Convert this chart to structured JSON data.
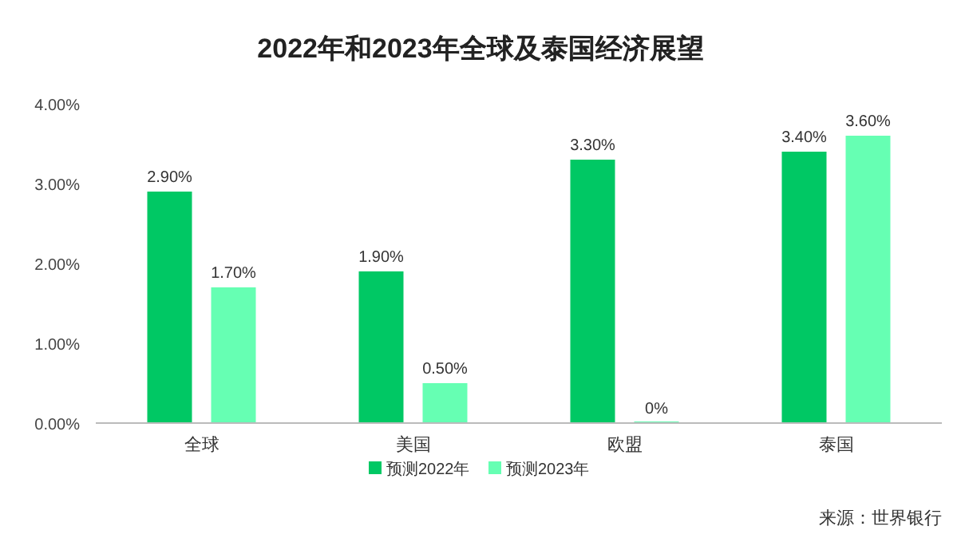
{
  "chart_data": {
    "type": "bar",
    "title": "2022年和2023年全球及泰国经济展望",
    "categories": [
      "全球",
      "美国",
      "欧盟",
      "泰国"
    ],
    "series": [
      {
        "name": "预测2022年",
        "color": "#00c864",
        "values": [
          2.9,
          1.9,
          3.3,
          3.4
        ],
        "value_labels": [
          "2.90%",
          "1.90%",
          "3.30%",
          "3.40%"
        ]
      },
      {
        "name": "预测2023年",
        "color": "#66ffb3",
        "values": [
          1.7,
          0.5,
          0,
          3.6
        ],
        "value_labels": [
          "1.70%",
          "0.50%",
          "0%",
          "3.60%"
        ]
      }
    ],
    "ylim": [
      0,
      4
    ],
    "yticks": [
      {
        "value": 0,
        "label": "0.00%"
      },
      {
        "value": 1,
        "label": "1.00%"
      },
      {
        "value": 2,
        "label": "2.00%"
      },
      {
        "value": 3,
        "label": "3.00%"
      },
      {
        "value": 4,
        "label": "4.00%"
      }
    ],
    "legend": "bottom",
    "annotations": [
      "来源：世界银行"
    ]
  }
}
